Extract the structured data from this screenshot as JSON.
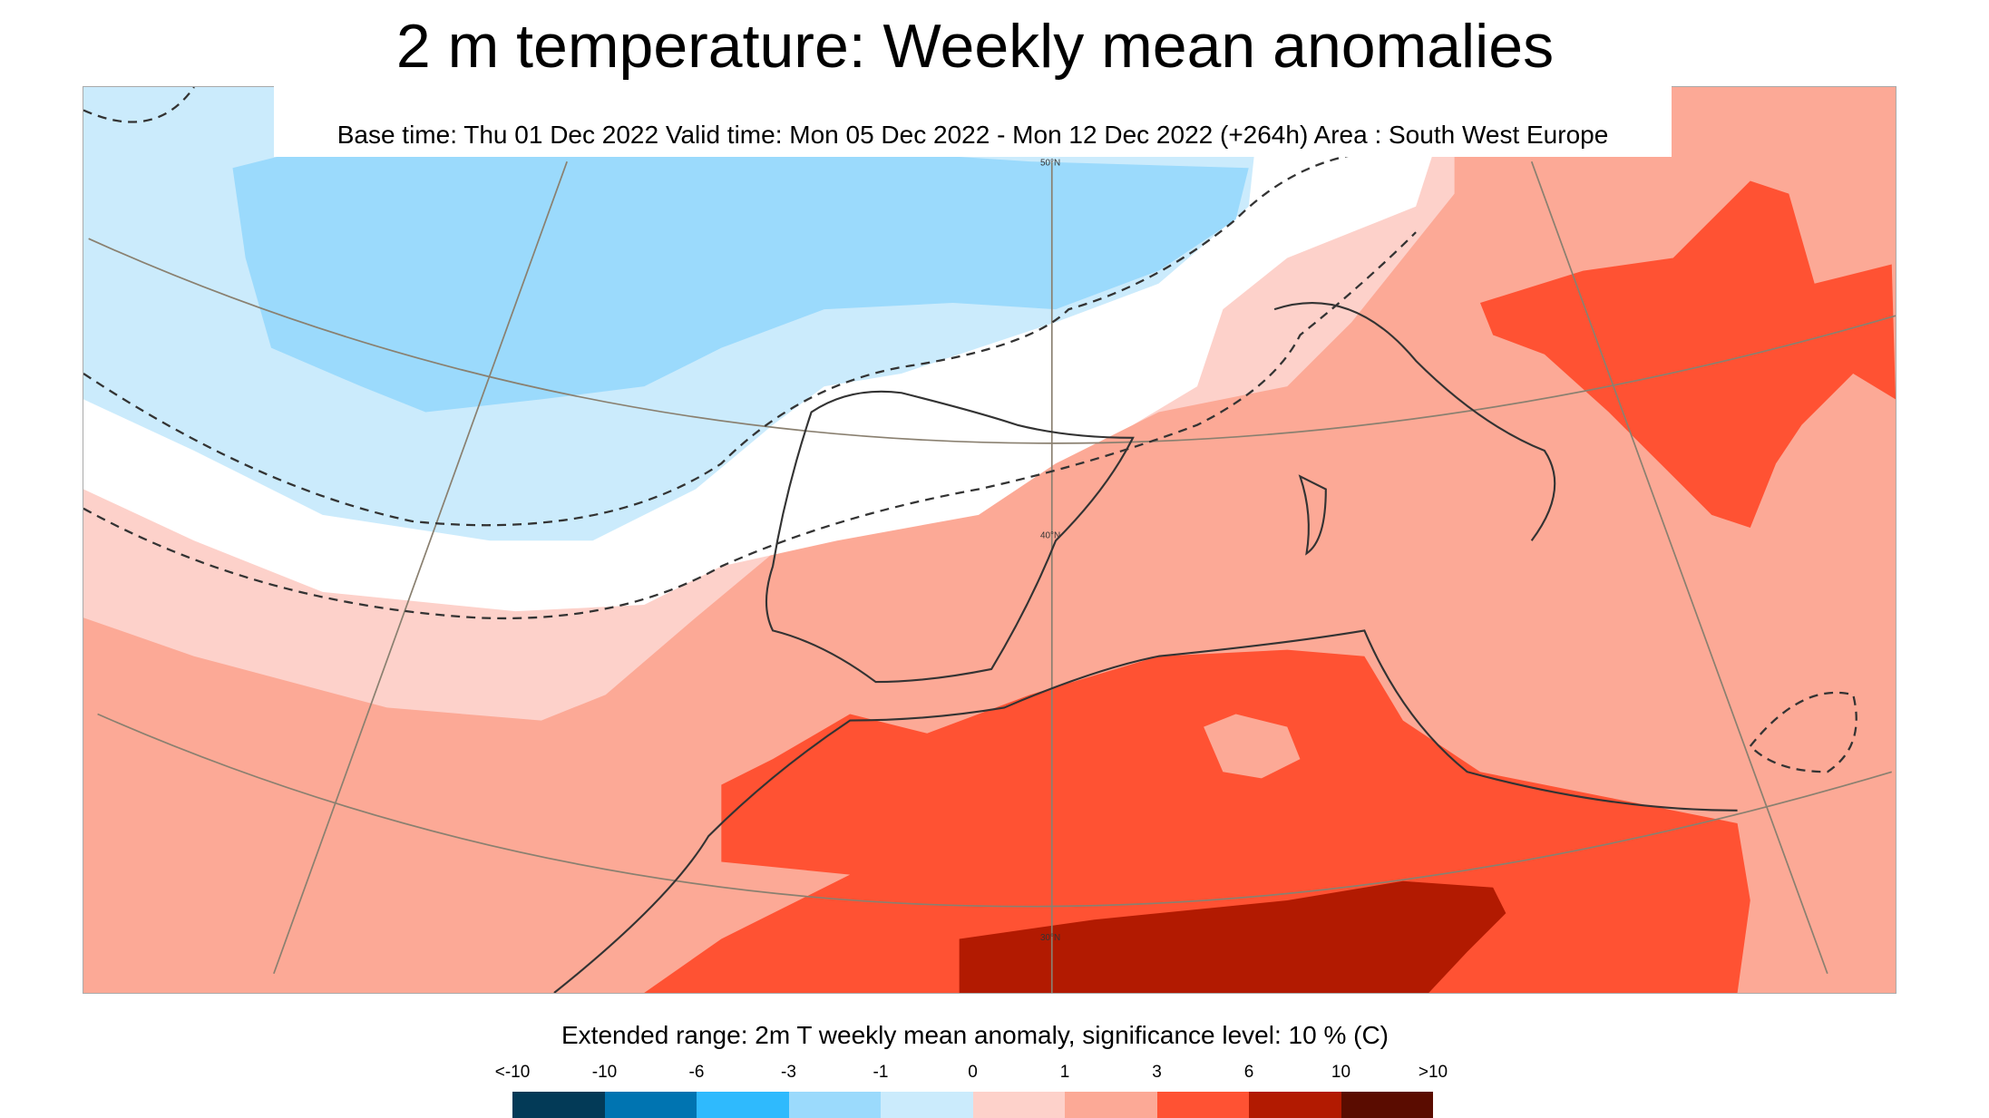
{
  "title": "2 m temperature: Weekly mean anomalies",
  "subtitle": "Base time: Thu 01 Dec 2022 Valid time: Mon 05 Dec 2022 - Mon 12 Dec 2022 (+264h) Area : South West Europe",
  "map": {
    "lat_labels": [
      "50°N",
      "40°N",
      "30°N"
    ],
    "colors": {
      "light_blue": "#cbebfc",
      "blue": "#9bdafc",
      "neutral": "#ffffff",
      "light_pink": "#fdd1ca",
      "salmon": "#fca996",
      "red": "#ff5233",
      "dark_red": "#b21a01"
    }
  },
  "legend": {
    "title": "Extended range: 2m T weekly mean anomaly, significance level: 10 % (C)",
    "labels": [
      "<-10",
      "-10",
      "-6",
      "-3",
      "-1",
      "0",
      "1",
      "3",
      "6",
      "10",
      ">10"
    ],
    "colors": [
      "#033a57",
      "#0074b1",
      "#2fbafd",
      "#9bdafc",
      "#cbebfc",
      "#fdd1ca",
      "#fca996",
      "#ff5233",
      "#b21a01",
      "#5a0c00"
    ]
  }
}
